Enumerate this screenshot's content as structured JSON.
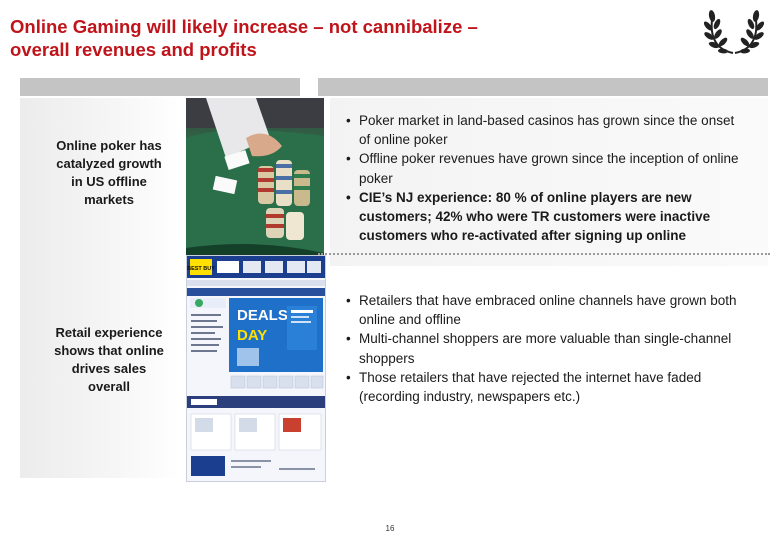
{
  "header": {
    "title_lines": [
      "Online Gaming will likely increase – not cannibalize –",
      "overall revenues and profits"
    ],
    "logo_icon": "laurel-wreath-icon",
    "title_color": "#c0141b"
  },
  "rows": [
    {
      "label_lines": [
        "Online poker has",
        "catalyzed growth",
        "in US offline",
        "markets"
      ],
      "image_icon": "poker-chips-photo",
      "bullets": [
        "Poker market in land-based casinos has grown since the onset of online poker",
        "Offline poker revenues have grown since the inception of online poker",
        "CIE’s NJ experience: 80 % of online players are new customers; 42% who were TR customers were inactive customers who re-activated after signing up online"
      ]
    },
    {
      "label_lines": [
        "Retail experience",
        "shows that online",
        "drives sales",
        "overall"
      ],
      "image_icon": "retail-website-screenshot",
      "bullets": [
        "Retailers that have embraced online channels have grown both online and offline",
        "Multi-channel shoppers are more valuable than single-channel shoppers",
        "Those retailers that have rejected the internet have faded (recording industry, newspapers etc.)"
      ]
    }
  ],
  "website": {
    "logo": "BEST BUY",
    "deals_line1": "DEALS",
    "deals_line2": "DAY"
  },
  "footer": {
    "page_number": "16"
  }
}
